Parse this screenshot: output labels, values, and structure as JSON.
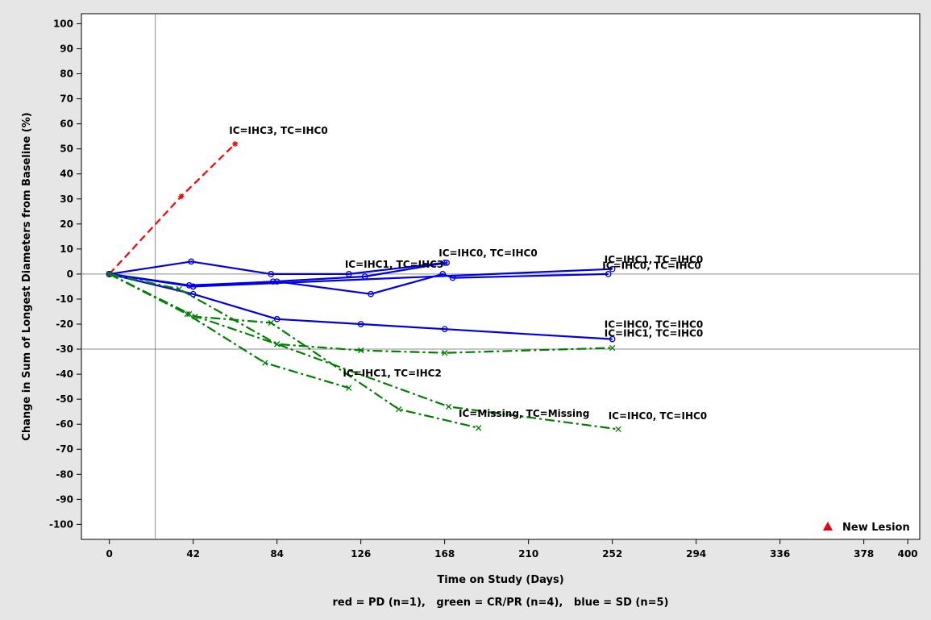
{
  "chart_data": {
    "type": "line",
    "xlabel": "Time on Study (Days)",
    "ylabel": "Change in Sum of Longest Diameters from Baseline (%)",
    "footnote": "red = PD (n=1),   green = CR/PR (n=4),   blue = SD (n=5)",
    "xlim": [
      -14,
      406
    ],
    "ylim": [
      -106,
      104
    ],
    "x_ticks": [
      0,
      42,
      84,
      126,
      168,
      210,
      252,
      294,
      336,
      378,
      400
    ],
    "y_ticks": [
      100,
      90,
      80,
      70,
      60,
      50,
      40,
      30,
      20,
      10,
      0,
      -10,
      -20,
      -30,
      -40,
      -50,
      -60,
      -70,
      -80,
      -90,
      -100
    ],
    "reference_lines": {
      "vertical_x": 23,
      "horizontal_y": [
        0,
        -30
      ]
    },
    "grid": false,
    "legend": {
      "position": "bottom-right",
      "label": "New Lesion",
      "marker": "triangle",
      "color": "#e8000b"
    },
    "colors": {
      "PD": "#ff0000",
      "CR/PR": "#008000",
      "SD": "#0000e6"
    },
    "series": [
      {
        "group": "PD",
        "marker": "star",
        "dash": "dash",
        "x": [
          0,
          36,
          63
        ],
        "y": [
          0,
          31,
          52
        ]
      },
      {
        "group": "SD",
        "marker": "circle",
        "dash": "solid",
        "x": [
          0,
          41,
          81,
          120,
          168
        ],
        "y": [
          0,
          5,
          0,
          0,
          4.5
        ]
      },
      {
        "group": "SD",
        "marker": "circle",
        "dash": "solid",
        "x": [
          0,
          42,
          82,
          128,
          169
        ],
        "y": [
          0,
          -5,
          -3,
          -1,
          4.5
        ]
      },
      {
        "group": "SD",
        "marker": "circle",
        "dash": "solid",
        "x": [
          0,
          40,
          84,
          131,
          167,
          172,
          250
        ],
        "y": [
          0,
          -4.5,
          -3,
          -8,
          0,
          -1.5,
          0
        ]
      },
      {
        "group": "SD",
        "marker": "circle",
        "dash": "solid",
        "x": [
          0,
          42,
          252
        ],
        "y": [
          0,
          -5,
          2
        ]
      },
      {
        "group": "SD",
        "marker": "circle",
        "dash": "solid",
        "x": [
          0,
          42,
          84,
          126,
          168,
          252
        ],
        "y": [
          0,
          -8,
          -18,
          -20,
          -22,
          -26
        ]
      },
      {
        "group": "CR/PR",
        "marker": "x",
        "dash": "dashdot",
        "x": [
          0,
          40,
          84,
          126,
          168,
          252
        ],
        "y": [
          0,
          -16,
          -28,
          -30.5,
          -31.5,
          -29.5
        ]
      },
      {
        "group": "CR/PR",
        "marker": "x",
        "dash": "dashdot",
        "x": [
          0,
          39,
          78,
          120
        ],
        "y": [
          0,
          -16,
          -35.5,
          -45.5
        ]
      },
      {
        "group": "CR/PR",
        "marker": "x",
        "dash": "dashdot",
        "x": [
          0,
          43,
          81,
          145,
          185
        ],
        "y": [
          0,
          -17,
          -19.5,
          -54,
          -61.5
        ]
      },
      {
        "group": "CR/PR",
        "marker": "x",
        "dash": "dashdot",
        "x": [
          0,
          35,
          84,
          170,
          255
        ],
        "y": [
          0,
          -6,
          -28,
          -53,
          -62
        ]
      }
    ],
    "annotations": [
      {
        "text": "IC=IHC3, TC=IHC0",
        "x": 60,
        "y": 56
      },
      {
        "text": "IC=IHC1, TC=IHC3",
        "x": 118,
        "y": 2.5
      },
      {
        "text": "IC=IHC0, TC=IHC0",
        "x": 165,
        "y": 7
      },
      {
        "text": "IC=IHC1, TC=IHC0",
        "x": 248,
        "y": 4.5
      },
      {
        "text": "IC=IHC0, TC=IHC0",
        "x": 247,
        "y": 2
      },
      {
        "text": "IC=IHC0, TC=IHC0",
        "x": 248,
        "y": -21.5
      },
      {
        "text": "IC=IHC1, TC=IHC0",
        "x": 248,
        "y": -25
      },
      {
        "text": "IC=IHC1, TC=IHC2",
        "x": 117,
        "y": -41
      },
      {
        "text": "IC=Missing, TC=Missing",
        "x": 175,
        "y": -57
      },
      {
        "text": "IC=IHC0, TC=IHC0",
        "x": 250,
        "y": -58
      }
    ]
  }
}
